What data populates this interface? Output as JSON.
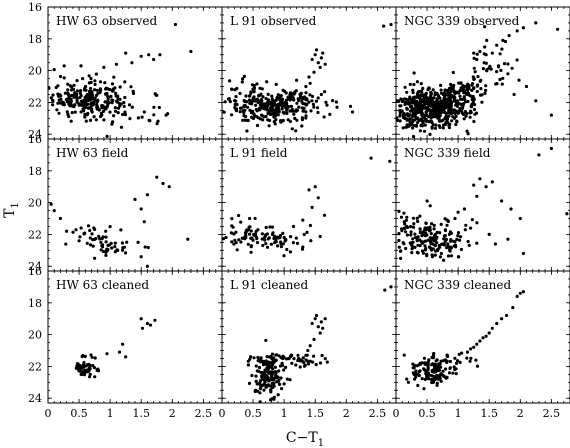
{
  "chart_data": {
    "type": "scatter",
    "xlabel": "C−T",
    "xlabel_sub": "1",
    "ylabel": "T",
    "ylabel_sub": "1",
    "xlim": [
      0,
      2.8
    ],
    "ylim": [
      24.3,
      16
    ],
    "x_ticks": [
      "0",
      "0.5",
      "1",
      "1.5",
      "2",
      "2.5"
    ],
    "x_tick_values": [
      0,
      0.5,
      1,
      1.5,
      2,
      2.5
    ],
    "y_ticks": [
      "16",
      "18",
      "20",
      "22",
      "24"
    ],
    "y_tick_values": [
      16,
      18,
      20,
      22,
      24
    ],
    "grid": false,
    "rows": 3,
    "cols": 3,
    "panels": [
      {
        "label": "HW 63 observed",
        "row": 0,
        "col": 0,
        "clumps": [
          {
            "cx": 0.65,
            "cy": 21.9,
            "sx": 0.28,
            "sy": 0.55,
            "n": 200
          },
          {
            "cx": 1.2,
            "cy": 22.2,
            "sx": 0.45,
            "sy": 0.65,
            "n": 45
          },
          {
            "cx": 0.25,
            "cy": 21.0,
            "sx": 0.15,
            "sy": 0.8,
            "n": 20
          }
        ],
        "points": [
          [
            2.05,
            17.1
          ],
          [
            1.5,
            19.1
          ],
          [
            1.62,
            19.0
          ],
          [
            1.7,
            19.3
          ],
          [
            1.35,
            19.5
          ],
          [
            1.8,
            19.0
          ],
          [
            2.3,
            18.8
          ],
          [
            1.25,
            18.9
          ],
          [
            1.1,
            19.6
          ],
          [
            0.9,
            19.8
          ],
          [
            1.55,
            22.6
          ],
          [
            1.9,
            22.8
          ],
          [
            0.9,
            23.1
          ]
        ]
      },
      {
        "label": "L 91 observed",
        "row": 0,
        "col": 1,
        "clumps": [
          {
            "cx": 0.75,
            "cy": 22.3,
            "sx": 0.35,
            "sy": 0.55,
            "n": 260
          },
          {
            "cx": 1.2,
            "cy": 21.9,
            "sx": 0.35,
            "sy": 0.35,
            "n": 45
          },
          {
            "cx": 0.4,
            "cy": 21.4,
            "sx": 0.2,
            "sy": 0.7,
            "n": 25
          }
        ],
        "points": [
          [
            1.45,
            19.3
          ],
          [
            1.5,
            19.0
          ],
          [
            1.55,
            19.5
          ],
          [
            1.6,
            19.2
          ],
          [
            1.52,
            18.7
          ],
          [
            1.58,
            19.8
          ],
          [
            1.48,
            20.1
          ],
          [
            1.4,
            20.4
          ],
          [
            1.42,
            20.8
          ],
          [
            1.35,
            21.0
          ],
          [
            1.62,
            18.9
          ],
          [
            1.66,
            19.6
          ],
          [
            2.6,
            17.2
          ],
          [
            2.72,
            17.1
          ],
          [
            1.2,
            20.6
          ],
          [
            1.6,
            21.5
          ],
          [
            2.1,
            22.6
          ],
          [
            1.85,
            22.3
          ],
          [
            1.1,
            23.2
          ],
          [
            0.4,
            23.8
          ],
          [
            2.9,
            16.9
          ]
        ]
      },
      {
        "label": "NGC 339 observed",
        "row": 0,
        "col": 2,
        "clumps": [
          {
            "cx": 0.6,
            "cy": 22.3,
            "sx": 0.3,
            "sy": 0.65,
            "n": 500
          },
          {
            "cx": 1.1,
            "cy": 21.2,
            "sx": 0.2,
            "sy": 0.4,
            "n": 70
          },
          {
            "cx": 1.45,
            "cy": 20.0,
            "sx": 0.2,
            "sy": 0.8,
            "n": 35
          },
          {
            "cx": 0.25,
            "cy": 22.8,
            "sx": 0.15,
            "sy": 0.6,
            "n": 40
          }
        ],
        "points": [
          [
            1.25,
            18.9
          ],
          [
            1.35,
            18.8
          ],
          [
            1.45,
            19.0
          ],
          [
            1.55,
            18.9
          ],
          [
            1.62,
            18.4
          ],
          [
            1.72,
            18.1
          ],
          [
            1.82,
            17.8
          ],
          [
            1.95,
            17.5
          ],
          [
            2.05,
            17.3
          ],
          [
            2.25,
            17.0
          ],
          [
            2.6,
            17.4
          ],
          [
            1.3,
            19.3
          ],
          [
            1.42,
            19.5
          ],
          [
            1.65,
            19.7
          ],
          [
            1.8,
            20.2
          ],
          [
            1.98,
            20.6
          ],
          [
            2.1,
            21.0
          ],
          [
            2.25,
            21.9
          ],
          [
            2.5,
            22.8
          ],
          [
            1.9,
            21.5
          ]
        ]
      },
      {
        "label": "HW 63 field",
        "row": 1,
        "col": 0,
        "clumps": [
          {
            "cx": 0.7,
            "cy": 22.1,
            "sx": 0.25,
            "sy": 0.35,
            "n": 30
          },
          {
            "cx": 1.0,
            "cy": 22.8,
            "sx": 0.22,
            "sy": 0.25,
            "n": 25
          }
        ],
        "points": [
          [
            0.05,
            20.1
          ],
          [
            0.1,
            20.5
          ],
          [
            0.2,
            21.0
          ],
          [
            0.3,
            21.8
          ],
          [
            0.45,
            21.7
          ],
          [
            0.5,
            22.4
          ],
          [
            1.5,
            20.4
          ],
          [
            1.55,
            21.2
          ],
          [
            1.6,
            19.5
          ],
          [
            1.75,
            18.4
          ],
          [
            1.85,
            18.8
          ],
          [
            1.95,
            19.0
          ],
          [
            1.45,
            22.5
          ],
          [
            1.2,
            23.0
          ],
          [
            1.5,
            23.4
          ],
          [
            1.6,
            24.0
          ],
          [
            1.4,
            19.8
          ],
          [
            2.25,
            22.3
          ],
          [
            0.75,
            23.5
          ]
        ]
      },
      {
        "label": "L 91 field",
        "row": 1,
        "col": 1,
        "clumps": [
          {
            "cx": 0.7,
            "cy": 22.3,
            "sx": 0.3,
            "sy": 0.4,
            "n": 90
          },
          {
            "cx": 0.25,
            "cy": 21.6,
            "sx": 0.15,
            "sy": 0.5,
            "n": 15
          }
        ],
        "points": [
          [
            1.4,
            19.2
          ],
          [
            1.5,
            19.0
          ],
          [
            1.55,
            19.7
          ],
          [
            1.65,
            20.8
          ],
          [
            1.3,
            21.1
          ],
          [
            1.15,
            21.5
          ],
          [
            2.4,
            17.2
          ],
          [
            2.7,
            17.4
          ],
          [
            1.45,
            20.3
          ],
          [
            1.3,
            22.8
          ],
          [
            1.1,
            23.1
          ]
        ]
      },
      {
        "label": "NGC 339 field",
        "row": 1,
        "col": 2,
        "clumps": [
          {
            "cx": 0.55,
            "cy": 22.4,
            "sx": 0.3,
            "sy": 0.6,
            "n": 160
          },
          {
            "cx": 0.2,
            "cy": 21.5,
            "sx": 0.15,
            "sy": 0.5,
            "n": 30
          }
        ],
        "points": [
          [
            1.25,
            18.9
          ],
          [
            1.35,
            18.5
          ],
          [
            1.45,
            19.0
          ],
          [
            1.55,
            18.7
          ],
          [
            1.3,
            19.6
          ],
          [
            1.7,
            19.9
          ],
          [
            1.85,
            20.4
          ],
          [
            2.0,
            21.0
          ],
          [
            2.3,
            17.0
          ],
          [
            2.5,
            16.6
          ],
          [
            2.75,
            20.7
          ],
          [
            1.0,
            20.6
          ],
          [
            1.1,
            20.4
          ],
          [
            0.95,
            21.0
          ],
          [
            1.2,
            21.6
          ],
          [
            1.5,
            22.0
          ],
          [
            1.6,
            22.6
          ],
          [
            1.8,
            22.3
          ],
          [
            2.05,
            23.2
          ],
          [
            0.5,
            19.9
          ],
          [
            0.55,
            20.2
          ]
        ]
      },
      {
        "label": "HW 63 cleaned",
        "row": 2,
        "col": 0,
        "clumps": [
          {
            "cx": 0.62,
            "cy": 22.1,
            "sx": 0.1,
            "sy": 0.35,
            "n": 55
          }
        ],
        "points": [
          [
            1.5,
            19.0
          ],
          [
            1.6,
            19.3
          ],
          [
            1.65,
            19.4
          ],
          [
            1.72,
            19.1
          ],
          [
            1.52,
            19.6
          ],
          [
            1.2,
            20.6
          ],
          [
            1.15,
            21.1
          ],
          [
            1.25,
            21.4
          ],
          [
            0.95,
            21.2
          ]
        ]
      },
      {
        "label": "L 91 cleaned",
        "row": 2,
        "col": 1,
        "clumps": [
          {
            "cx": 0.75,
            "cy": 22.5,
            "sx": 0.12,
            "sy": 0.7,
            "n": 150
          },
          {
            "cx": 1.2,
            "cy": 21.6,
            "sx": 0.25,
            "sy": 0.18,
            "n": 45
          }
        ],
        "points": [
          [
            1.45,
            19.3
          ],
          [
            1.5,
            19.0
          ],
          [
            1.55,
            19.5
          ],
          [
            1.6,
            19.2
          ],
          [
            1.52,
            18.8
          ],
          [
            1.58,
            19.9
          ],
          [
            1.48,
            20.3
          ],
          [
            1.42,
            20.7
          ],
          [
            1.38,
            21.0
          ],
          [
            1.62,
            19.6
          ],
          [
            1.66,
            19.0
          ],
          [
            2.62,
            17.2
          ],
          [
            2.72,
            17.0
          ],
          [
            1.35,
            21.3
          ],
          [
            1.0,
            23.1
          ],
          [
            1.05,
            22.8
          ]
        ]
      },
      {
        "label": "NGC 339 cleaned",
        "row": 2,
        "col": 2,
        "clumps": [
          {
            "cx": 0.55,
            "cy": 22.3,
            "sx": 0.15,
            "sy": 0.5,
            "n": 120
          },
          {
            "cx": 0.9,
            "cy": 21.6,
            "sx": 0.2,
            "sy": 0.3,
            "n": 30
          }
        ],
        "points": [
          [
            1.2,
            20.9
          ],
          [
            1.3,
            20.6
          ],
          [
            1.35,
            20.4
          ],
          [
            1.45,
            20.1
          ],
          [
            1.5,
            19.9
          ],
          [
            1.55,
            19.6
          ],
          [
            1.62,
            19.3
          ],
          [
            1.7,
            19.0
          ],
          [
            1.78,
            18.8
          ],
          [
            1.88,
            18.3
          ],
          [
            1.95,
            17.6
          ],
          [
            2.0,
            17.4
          ],
          [
            2.05,
            17.3
          ],
          [
            1.25,
            20.8
          ],
          [
            1.4,
            20.2
          ],
          [
            1.15,
            21.1
          ],
          [
            0.35,
            23.2
          ],
          [
            0.45,
            23.4
          ],
          [
            0.3,
            22.8
          ],
          [
            0.2,
            23.0
          ]
        ]
      }
    ]
  }
}
